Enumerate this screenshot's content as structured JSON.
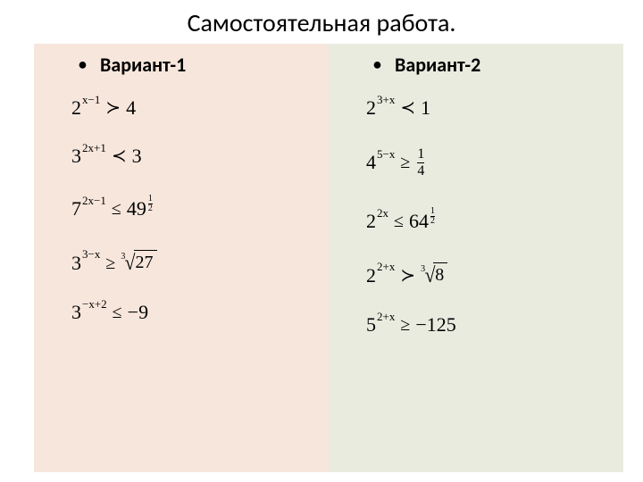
{
  "title": "Самостоятельная работа.",
  "colors": {
    "left_bg": "#f7e6dc",
    "right_bg": "#e9ebdf",
    "text": "#000000"
  },
  "left": {
    "heading": "Вариант-1",
    "equations": [
      {
        "lhs_base": "2",
        "lhs_exp": "x−1",
        "rel": "≻",
        "rhs_type": "num",
        "rhs": "4"
      },
      {
        "lhs_base": "3",
        "lhs_exp": "2x+1",
        "rel": "≺",
        "rhs_type": "num",
        "rhs": "3"
      },
      {
        "lhs_base": "7",
        "lhs_exp": "2x−1",
        "rel": "≤",
        "rhs_type": "pow_frac",
        "rhs_base": "49",
        "rhs_num": "1",
        "rhs_den": "2"
      },
      {
        "lhs_base": "3",
        "lhs_exp": "3−x",
        "rel": "≥",
        "rhs_type": "root",
        "rhs_deg": "3",
        "rhs_rad": "27"
      },
      {
        "lhs_base": "3",
        "lhs_exp": "−x+2",
        "rel": "≤",
        "rhs_type": "num",
        "rhs": "−9"
      }
    ]
  },
  "right": {
    "heading": "Вариант-2",
    "equations": [
      {
        "lhs_base": "2",
        "lhs_exp": "3+x",
        "rel": "≺",
        "rhs_type": "num",
        "rhs": "1"
      },
      {
        "lhs_base": "4",
        "lhs_exp": "5−x",
        "rel": "≥",
        "rhs_type": "frac",
        "rhs_num": "1",
        "rhs_den": "4"
      },
      {
        "lhs_base": "2",
        "lhs_exp": "2x",
        "rel": "≤",
        "rhs_type": "pow_frac",
        "rhs_base": "64",
        "rhs_num": "1",
        "rhs_den": "2"
      },
      {
        "lhs_base": "2",
        "lhs_exp": "2+x",
        "rel": "≻",
        "rhs_type": "root",
        "rhs_deg": "3",
        "rhs_rad": "8"
      },
      {
        "lhs_base": "5",
        "lhs_exp": "2+x",
        "rel": "≥",
        "rhs_type": "num",
        "rhs": "−125"
      }
    ]
  }
}
